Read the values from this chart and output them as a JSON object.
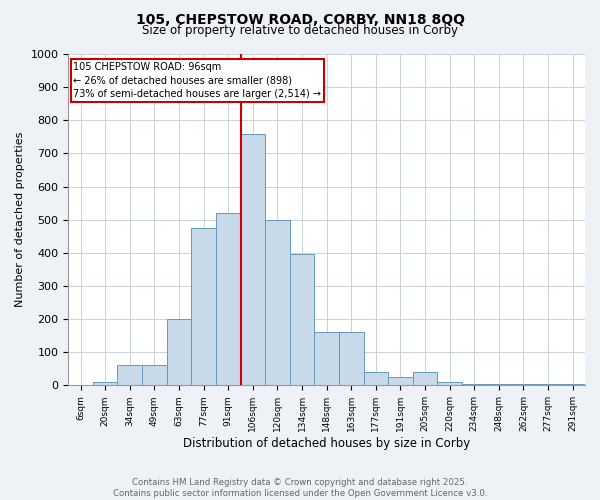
{
  "title1": "105, CHEPSTOW ROAD, CORBY, NN18 8QQ",
  "title2": "Size of property relative to detached houses in Corby",
  "xlabel": "Distribution of detached houses by size in Corby",
  "ylabel": "Number of detached properties",
  "bin_labels": [
    "6sqm",
    "20sqm",
    "34sqm",
    "49sqm",
    "63sqm",
    "77sqm",
    "91sqm",
    "106sqm",
    "120sqm",
    "134sqm",
    "148sqm",
    "163sqm",
    "177sqm",
    "191sqm",
    "205sqm",
    "220sqm",
    "234sqm",
    "248sqm",
    "262sqm",
    "277sqm",
    "291sqm"
  ],
  "bar_values": [
    0,
    10,
    60,
    60,
    200,
    475,
    520,
    760,
    500,
    395,
    160,
    160,
    40,
    25,
    40,
    10,
    5,
    5,
    5,
    5,
    5
  ],
  "bar_color": "#c8d9ea",
  "bar_edge_color": "#6699bb",
  "vline_color": "#cc0000",
  "annotation_text": "105 CHEPSTOW ROAD: 96sqm\n← 26% of detached houses are smaller (898)\n73% of semi-detached houses are larger (2,514) →",
  "annotation_box_edgecolor": "#cc0000",
  "ylim": [
    0,
    1000
  ],
  "yticks": [
    0,
    100,
    200,
    300,
    400,
    500,
    600,
    700,
    800,
    900,
    1000
  ],
  "footer": "Contains HM Land Registry data © Crown copyright and database right 2025.\nContains public sector information licensed under the Open Government Licence v3.0.",
  "background_color": "#eef2f7",
  "plot_background": "#ffffff",
  "grid_color": "#c0ccd8"
}
